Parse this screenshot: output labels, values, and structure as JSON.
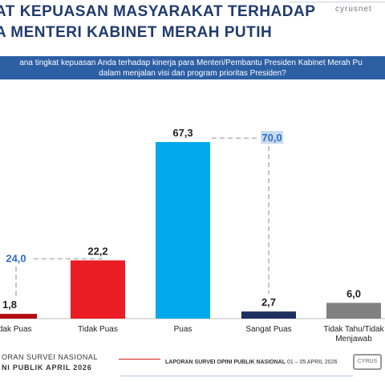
{
  "header": {
    "title_line1": "AT KEPUASAN MASYARAKAT TERHADAP",
    "title_line2": "A MENTERI KABINET MERAH PUTIH",
    "brand": "cyrusnet"
  },
  "question": {
    "line1": "ana tingkat kepuasan Anda terhadap kinerja para Menteri/Pembantu Presiden Kabinet Merah Pu",
    "line2": "dalam menjalan visi dan program prioritas Presiden?"
  },
  "colors": {
    "title": "#1f3a6e",
    "question_bg": "#2d5fa5",
    "sangat_tidak_puas": "#b30b12",
    "tidak_puas": "#ea1c24",
    "puas": "#02a9ec",
    "sangat_puas": "#1c2f5e",
    "tidak_tahu": "#808080",
    "aggregate_label": "#2c6fc4",
    "aggregate_highlight": "#c9d9ef"
  },
  "chart_data": {
    "type": "bar",
    "categories": [
      "t Tidak Puas",
      "Tidak Puas",
      "Puas",
      "Sangat Puas",
      "Tidak Tahu/Tidak Menjawab"
    ],
    "category_lines": [
      [
        "t Tidak Puas"
      ],
      [
        "Tidak Puas"
      ],
      [
        "Puas"
      ],
      [
        "Sangat Puas"
      ],
      [
        "Tidak Tahu/Tidak",
        "Menjawab"
      ]
    ],
    "values": [
      1.8,
      22.2,
      67.3,
      2.7,
      6.0
    ],
    "value_labels": [
      "1,8",
      "22,2",
      "67,3",
      "2,7",
      "6,0"
    ],
    "aggregates": [
      {
        "label": "24,0",
        "value": 24.0,
        "from": 0,
        "to": 1
      },
      {
        "label": "70,0",
        "value": 70.0,
        "from": 2,
        "to": 3
      }
    ],
    "ylim": [
      0,
      70
    ],
    "title": "",
    "xlabel": "",
    "ylabel": "",
    "grid": false,
    "legend": "none"
  },
  "footer": {
    "left_line1": "ORAN SURVEI NASIONAL",
    "left_line2": "NI PUBLIK APRIL 2026",
    "center_bold": "LAPORAN SURVEI OPINI PUBLIK NASIONAL",
    "center_date": "01 – 05 APRIL 2026",
    "logo_text": "CYRUS"
  }
}
